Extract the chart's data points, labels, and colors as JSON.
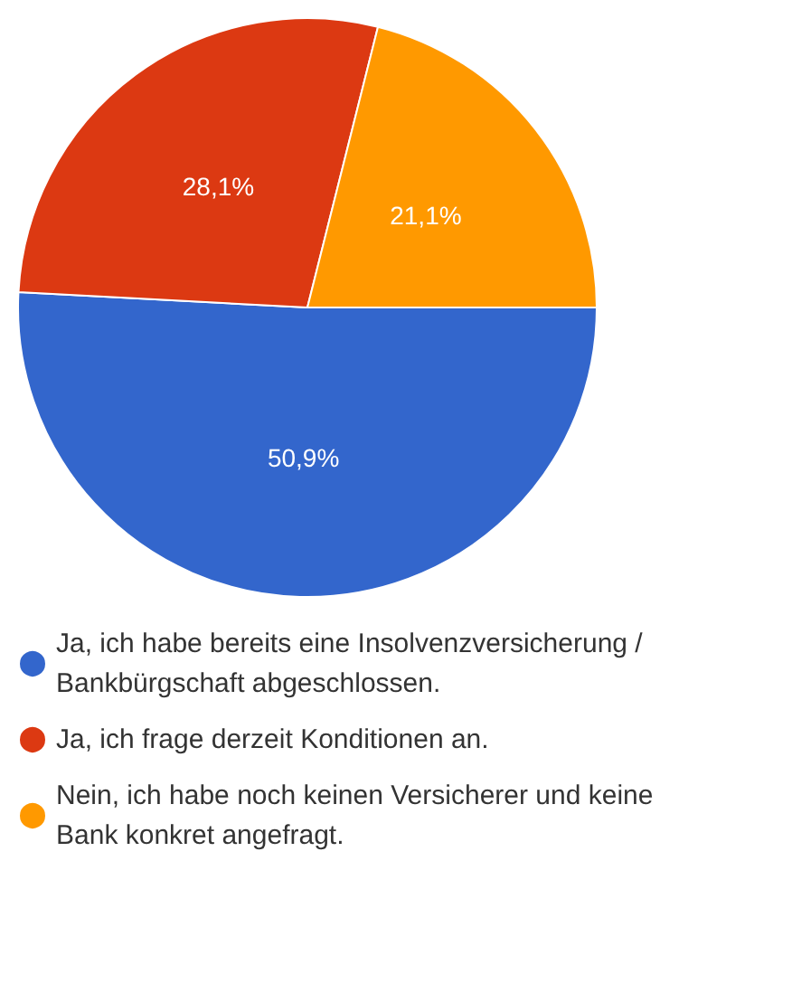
{
  "chart_data": {
    "type": "pie",
    "categories": [
      "Ja, ich habe bereits eine Insolvenzversicherung / Bankbürgschaft abgeschlossen.",
      "Ja, ich frage derzeit Konditionen an.",
      "Nein, ich habe noch keinen Versicherer und keine Bank konkret angefragt."
    ],
    "values": [
      50.9,
      28.1,
      21.1
    ],
    "colors": [
      "#3366cc",
      "#dc3912",
      "#ff9900"
    ],
    "value_labels": [
      "50,9%",
      "28,1%",
      "21,1%"
    ],
    "legend": "bottom"
  }
}
